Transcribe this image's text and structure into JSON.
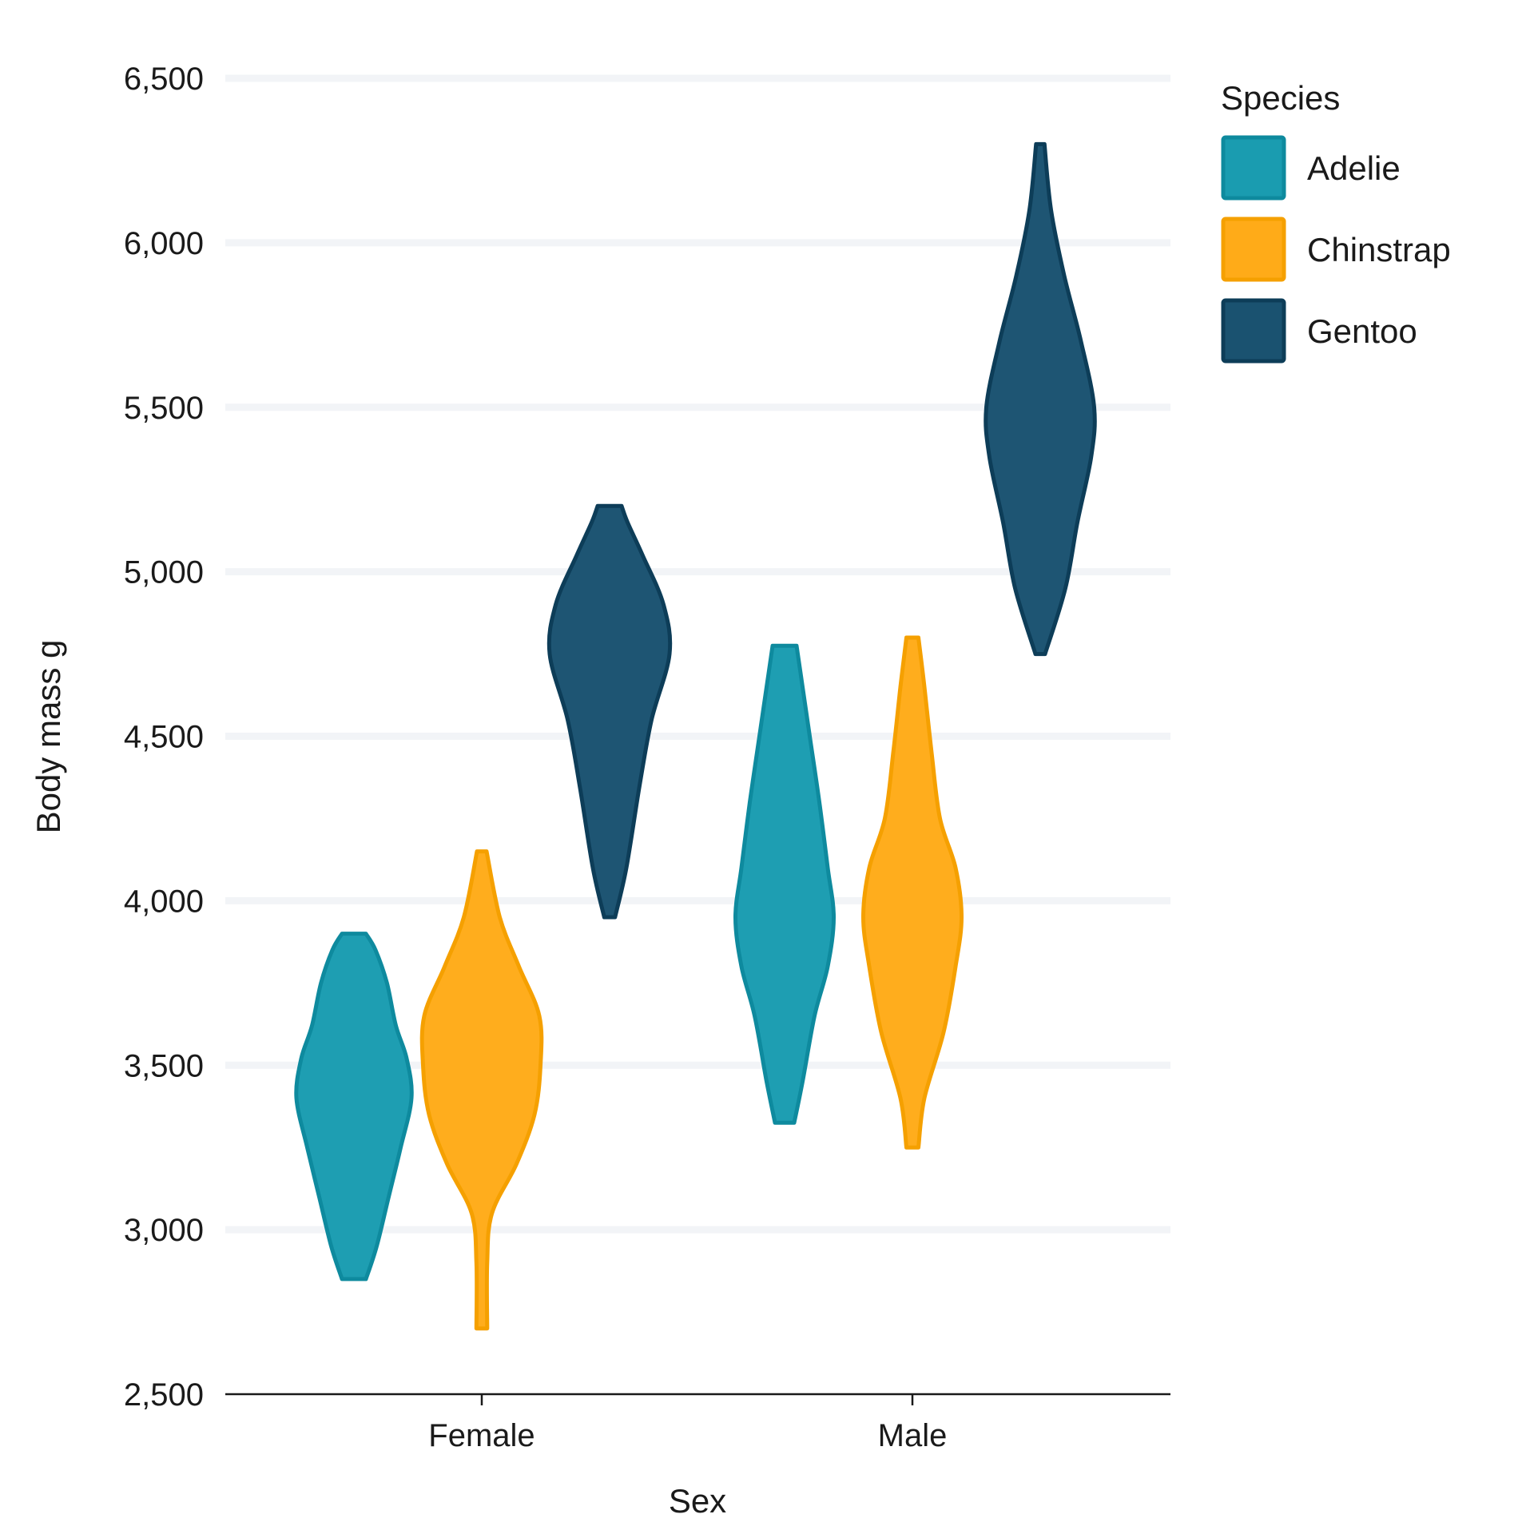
{
  "chart_data": {
    "type": "violin",
    "xlabel": "Sex",
    "ylabel": "Body mass g",
    "ylim": [
      2500,
      6500
    ],
    "yticks": [
      2500,
      3000,
      3500,
      4000,
      4500,
      5000,
      5500,
      6000,
      6500
    ],
    "ytick_labels": [
      "2,500",
      "3,000",
      "3,500",
      "4,000",
      "4,500",
      "5,000",
      "5,500",
      "6,000",
      "6,500"
    ],
    "categories": [
      "Female",
      "Male"
    ],
    "grid": true,
    "legend": {
      "title": "Species",
      "placement": "top-right",
      "entries": [
        "Adelie",
        "Chinstrap",
        "Gentoo"
      ]
    },
    "series": [
      {
        "name": "Adelie",
        "color": "#1a9cb0",
        "stroke": "#0e8a9e",
        "violins": [
          {
            "category": "Female",
            "min": 2850,
            "max": 3900,
            "profile": [
              [
                2850,
                0.2
              ],
              [
                2950,
                0.38
              ],
              [
                3100,
                0.58
              ],
              [
                3250,
                0.78
              ],
              [
                3400,
                0.96
              ],
              [
                3520,
                0.88
              ],
              [
                3620,
                0.7
              ],
              [
                3750,
                0.55
              ],
              [
                3850,
                0.36
              ],
              [
                3900,
                0.2
              ]
            ]
          },
          {
            "category": "Male",
            "min": 3325,
            "max": 4775,
            "profile": [
              [
                3325,
                0.16
              ],
              [
                3450,
                0.3
              ],
              [
                3650,
                0.5
              ],
              [
                3800,
                0.72
              ],
              [
                3950,
                0.82
              ],
              [
                4100,
                0.72
              ],
              [
                4300,
                0.58
              ],
              [
                4500,
                0.42
              ],
              [
                4650,
                0.3
              ],
              [
                4775,
                0.2
              ]
            ]
          }
        ]
      },
      {
        "name": "Chinstrap",
        "color": "#ffab18",
        "stroke": "#f5a000",
        "violins": [
          {
            "category": "Female",
            "min": 2700,
            "max": 4150,
            "profile": [
              [
                2700,
                0.09
              ],
              [
                2900,
                0.09
              ],
              [
                3050,
                0.17
              ],
              [
                3200,
                0.58
              ],
              [
                3350,
                0.88
              ],
              [
                3500,
                0.98
              ],
              [
                3650,
                0.96
              ],
              [
                3800,
                0.62
              ],
              [
                3950,
                0.3
              ],
              [
                4150,
                0.08
              ]
            ]
          },
          {
            "category": "Male",
            "min": 3250,
            "max": 4800,
            "profile": [
              [
                3250,
                0.1
              ],
              [
                3400,
                0.2
              ],
              [
                3600,
                0.52
              ],
              [
                3800,
                0.72
              ],
              [
                3950,
                0.82
              ],
              [
                4100,
                0.72
              ],
              [
                4250,
                0.46
              ],
              [
                4450,
                0.32
              ],
              [
                4650,
                0.2
              ],
              [
                4800,
                0.1
              ]
            ]
          }
        ]
      },
      {
        "name": "Gentoo",
        "color": "#1a5270",
        "stroke": "#0d3d58",
        "violins": [
          {
            "category": "Female",
            "min": 3950,
            "max": 5200,
            "profile": [
              [
                3950,
                0.09
              ],
              [
                4100,
                0.28
              ],
              [
                4350,
                0.5
              ],
              [
                4550,
                0.7
              ],
              [
                4750,
                1.0
              ],
              [
                4900,
                0.9
              ],
              [
                5050,
                0.55
              ],
              [
                5150,
                0.3
              ],
              [
                5200,
                0.2
              ]
            ]
          },
          {
            "category": "Male",
            "min": 4750,
            "max": 6300,
            "profile": [
              [
                4750,
                0.08
              ],
              [
                4950,
                0.42
              ],
              [
                5150,
                0.62
              ],
              [
                5350,
                0.85
              ],
              [
                5500,
                0.9
              ],
              [
                5700,
                0.68
              ],
              [
                5900,
                0.4
              ],
              [
                6100,
                0.18
              ],
              [
                6300,
                0.07
              ]
            ]
          }
        ]
      }
    ]
  }
}
